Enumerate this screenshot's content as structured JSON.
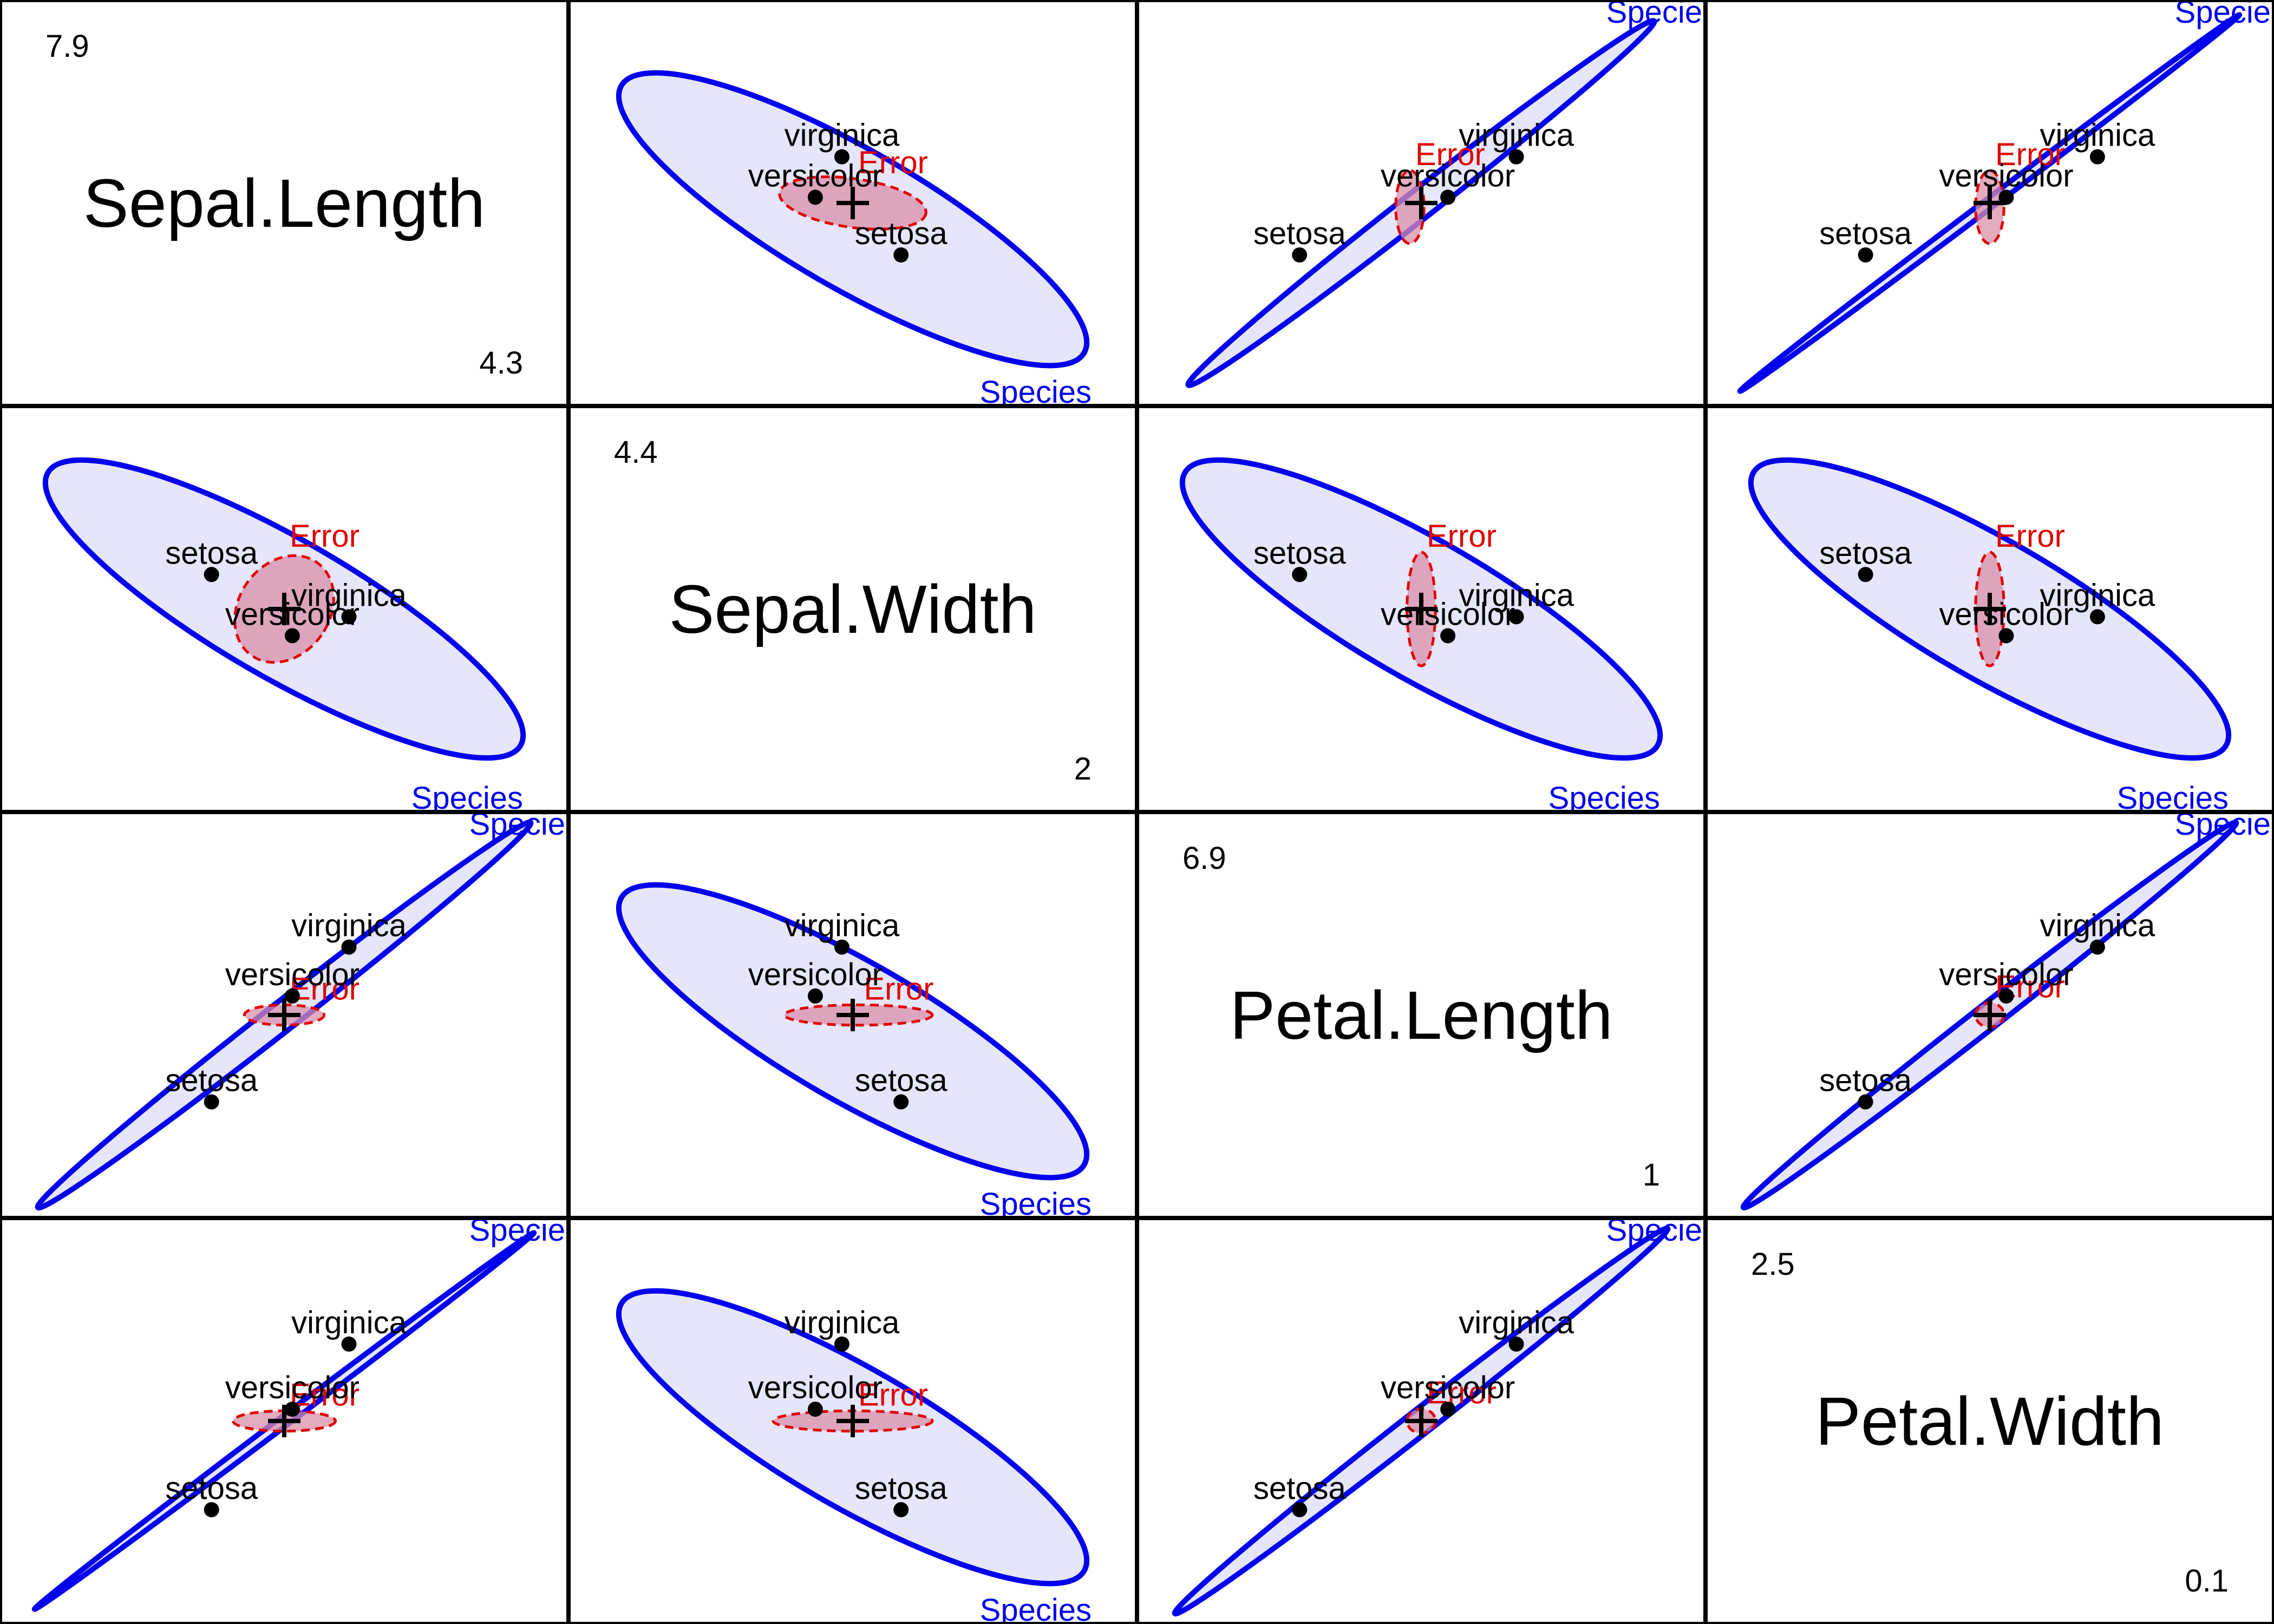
{
  "chart_data": {
    "type": "scatter",
    "title": "",
    "variables": [
      "Sepal.Length",
      "Sepal.Width",
      "Petal.Length",
      "Petal.Width"
    ],
    "ranges": {
      "Sepal.Length": {
        "max": "7.9",
        "min": "4.3"
      },
      "Sepal.Width": {
        "max": "4.4",
        "min": "2"
      },
      "Petal.Length": {
        "max": "6.9",
        "min": "1"
      },
      "Petal.Width": {
        "max": "2.5",
        "min": "0.1"
      }
    },
    "group_means": [
      {
        "name": "setosa",
        "values": {
          "Sepal.Length": 5.006,
          "Sepal.Width": 3.428,
          "Petal.Length": 1.462,
          "Petal.Width": 0.246
        }
      },
      {
        "name": "versicolor",
        "values": {
          "Sepal.Length": 5.936,
          "Sepal.Width": 2.77,
          "Petal.Length": 4.26,
          "Petal.Width": 1.326
        }
      },
      {
        "name": "virginica",
        "values": {
          "Sepal.Length": 6.588,
          "Sepal.Width": 2.974,
          "Petal.Length": 5.552,
          "Petal.Width": 2.026
        }
      }
    ],
    "hypothesis_label": "Species",
    "hypothesis_label_clipped": "Specie",
    "error_label": "Error",
    "colors": {
      "hypothesis": "#0000ee",
      "hypothesis_fill": "#e6e6fa",
      "error": "#e00000",
      "error_fill": "#d98fa8",
      "points": "#000000"
    },
    "ellipses": {
      "Sepal.Length|Sepal.Width": {
        "hyp": [
          0.5,
          0.54,
          0.47,
          0.17,
          30
        ],
        "err": [
          0.5,
          0.5,
          0.13,
          0.06,
          8
        ],
        "species_label_pos": "bottom"
      },
      "Sepal.Length|Petal.Length": {
        "hyp": [
          0.5,
          0.5,
          0.52,
          0.035,
          -38
        ],
        "err": [
          0.48,
          0.51,
          0.025,
          0.09,
          0
        ],
        "species_label_pos": "top"
      },
      "Sepal.Length|Petal.Width": {
        "hyp": [
          0.5,
          0.5,
          0.55,
          0.012,
          -37
        ],
        "err": [
          0.5,
          0.51,
          0.025,
          0.09,
          0
        ],
        "species_label_pos": "top"
      },
      "Sepal.Width|Sepal.Length": {
        "hyp": [
          0.5,
          0.5,
          0.48,
          0.17,
          30
        ],
        "err": [
          0.5,
          0.5,
          0.08,
          0.14,
          35
        ],
        "species_label_pos": "bottom"
      },
      "Sepal.Width|Petal.Length": {
        "hyp": [
          0.5,
          0.5,
          0.48,
          0.17,
          30
        ],
        "err": [
          0.5,
          0.5,
          0.025,
          0.14,
          0
        ],
        "species_label_pos": "bottom"
      },
      "Sepal.Width|Petal.Width": {
        "hyp": [
          0.5,
          0.5,
          0.48,
          0.17,
          30
        ],
        "err": [
          0.5,
          0.5,
          0.025,
          0.14,
          0
        ],
        "species_label_pos": "bottom"
      },
      "Petal.Length|Sepal.Length": {
        "hyp": [
          0.5,
          0.5,
          0.55,
          0.035,
          -38
        ],
        "err": [
          0.5,
          0.5,
          0.07,
          0.025,
          0
        ],
        "species_label_pos": "top"
      },
      "Petal.Length|Sepal.Width": {
        "hyp": [
          0.5,
          0.54,
          0.47,
          0.17,
          30
        ],
        "err": [
          0.51,
          0.5,
          0.13,
          0.025,
          0
        ],
        "species_label_pos": "bottom"
      },
      "Petal.Length|Petal.Width": {
        "hyp": [
          0.5,
          0.5,
          0.55,
          0.03,
          -38
        ],
        "err": [
          0.5,
          0.5,
          0.025,
          0.03,
          0
        ],
        "species_label_pos": "top"
      },
      "Petal.Width|Sepal.Length": {
        "hyp": [
          0.5,
          0.5,
          0.55,
          0.012,
          -37
        ],
        "err": [
          0.5,
          0.5,
          0.09,
          0.025,
          0
        ],
        "species_label_pos": "top"
      },
      "Petal.Width|Sepal.Width": {
        "hyp": [
          0.5,
          0.54,
          0.47,
          0.17,
          30
        ],
        "err": [
          0.5,
          0.5,
          0.14,
          0.025,
          0
        ],
        "species_label_pos": "bottom"
      },
      "Petal.Width|Petal.Length": {
        "hyp": [
          0.5,
          0.5,
          0.55,
          0.03,
          -38
        ],
        "err": [
          0.5,
          0.5,
          0.025,
          0.03,
          0
        ],
        "species_label_pos": "top"
      }
    }
  }
}
